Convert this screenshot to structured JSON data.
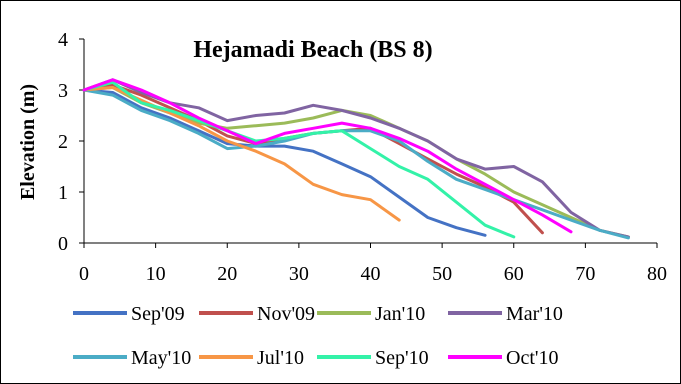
{
  "chart_data": {
    "type": "line",
    "title": "Hejamadi Beach (BS 8)",
    "xlabel": "",
    "ylabel": "Elevation (m)",
    "xlim": [
      0,
      80
    ],
    "ylim": [
      0,
      4
    ],
    "xticks": [
      0,
      10,
      20,
      30,
      40,
      50,
      60,
      70,
      80
    ],
    "yticks": [
      0,
      1,
      2,
      3,
      4
    ],
    "grid": false,
    "legend_position": "bottom",
    "series": [
      {
        "name": "Sep'09",
        "color": "#4472c4",
        "x": [
          0,
          4,
          8,
          12,
          16,
          20,
          24,
          28,
          32,
          36,
          40,
          44,
          48,
          52,
          56
        ],
        "y": [
          3.0,
          2.95,
          2.65,
          2.45,
          2.2,
          1.95,
          1.9,
          1.9,
          1.8,
          1.55,
          1.3,
          0.9,
          0.5,
          0.3,
          0.15
        ]
      },
      {
        "name": "Nov'09",
        "color": "#c0504d",
        "x": [
          0,
          4,
          8,
          12,
          16,
          20,
          24,
          28,
          32,
          36,
          40,
          44,
          48,
          52,
          56,
          60,
          64
        ],
        "y": [
          3.0,
          3.1,
          2.9,
          2.65,
          2.4,
          2.1,
          1.95,
          2.05,
          2.15,
          2.2,
          2.25,
          1.95,
          1.65,
          1.35,
          1.1,
          0.8,
          0.2
        ]
      },
      {
        "name": "Jan'10",
        "color": "#9bbb59",
        "x": [
          0,
          4,
          8,
          12,
          16,
          20,
          24,
          28,
          32,
          36,
          40,
          44,
          48,
          52,
          56,
          60,
          64,
          68,
          72,
          76
        ],
        "y": [
          3.0,
          3.05,
          2.75,
          2.55,
          2.35,
          2.25,
          2.3,
          2.35,
          2.45,
          2.6,
          2.5,
          2.25,
          2.0,
          1.65,
          1.35,
          1.0,
          0.75,
          0.5,
          0.25,
          0.12
        ]
      },
      {
        "name": "Mar'10",
        "color": "#8064a2",
        "x": [
          0,
          4,
          8,
          12,
          16,
          20,
          24,
          28,
          32,
          36,
          40,
          44,
          48,
          52,
          56,
          60,
          64,
          68,
          72,
          76
        ],
        "y": [
          3.0,
          3.2,
          2.95,
          2.75,
          2.65,
          2.4,
          2.5,
          2.55,
          2.7,
          2.6,
          2.45,
          2.25,
          2.0,
          1.65,
          1.45,
          1.5,
          1.2,
          0.6,
          0.25,
          0.12
        ]
      },
      {
        "name": "May'10",
        "color": "#4bacc6",
        "x": [
          0,
          4,
          8,
          12,
          16,
          20,
          24,
          28,
          32,
          36,
          40,
          44,
          48,
          52,
          56,
          60,
          64,
          68,
          72,
          76
        ],
        "y": [
          3.0,
          2.9,
          2.6,
          2.4,
          2.15,
          1.85,
          1.9,
          2.0,
          2.15,
          2.2,
          2.2,
          2.0,
          1.6,
          1.25,
          1.05,
          0.85,
          0.65,
          0.45,
          0.25,
          0.1
        ]
      },
      {
        "name": "Jul'10",
        "color": "#f79646",
        "x": [
          0,
          4,
          8,
          12,
          16,
          20,
          24,
          28,
          32,
          36,
          40,
          44
        ],
        "y": [
          3.0,
          3.05,
          2.8,
          2.55,
          2.3,
          2.0,
          1.8,
          1.55,
          1.15,
          0.95,
          0.85,
          0.45
        ]
      },
      {
        "name": "Sep'10",
        "color": "#33f2a8",
        "x": [
          0,
          4,
          8,
          12,
          16,
          20,
          24,
          28,
          32,
          36,
          40,
          44,
          48,
          52,
          56,
          60
        ],
        "y": [
          3.0,
          3.15,
          2.75,
          2.6,
          2.4,
          2.2,
          2.0,
          2.05,
          2.15,
          2.2,
          1.85,
          1.5,
          1.25,
          0.8,
          0.35,
          0.12
        ]
      },
      {
        "name": "Oct'10",
        "color": "#ff00ff",
        "x": [
          0,
          4,
          8,
          12,
          16,
          20,
          24,
          28,
          32,
          36,
          40,
          44,
          48,
          52,
          56,
          60,
          64,
          68
        ],
        "y": [
          3.0,
          3.2,
          3.0,
          2.75,
          2.45,
          2.2,
          1.95,
          2.15,
          2.25,
          2.35,
          2.25,
          2.05,
          1.8,
          1.45,
          1.15,
          0.85,
          0.55,
          0.22
        ]
      }
    ]
  }
}
